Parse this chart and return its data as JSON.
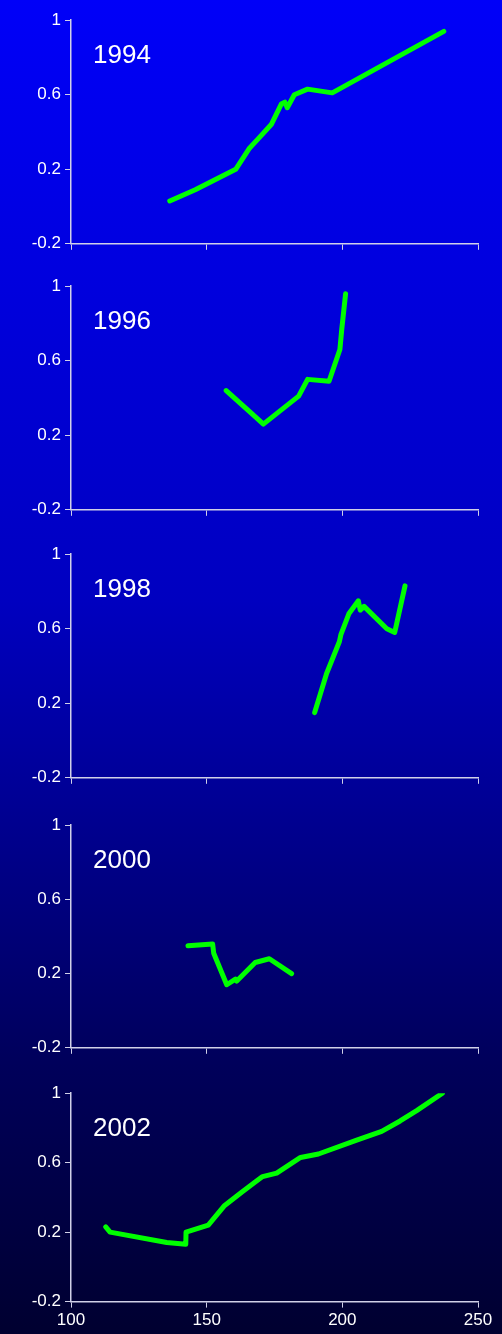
{
  "chart_data": [
    {
      "type": "line",
      "title": "1994",
      "tick_labels": "y",
      "marker": "none",
      "line_style": "solid",
      "xlim": [
        100,
        250
      ],
      "xticks": [
        100,
        150,
        200,
        250
      ],
      "ylim": [
        -0.2,
        1.0
      ],
      "yticks": [
        -0.2,
        0.2,
        0.6,
        1.0
      ],
      "series": [
        {
          "color": "#00ff00",
          "x": [
            136.4,
            145.8,
            160.7,
            165.6,
            173.8,
            177.5,
            178.8,
            179.7,
            182.3,
            187.2,
            196.3,
            237.4
          ],
          "values": [
            0.03,
            0.09,
            0.2,
            0.31,
            0.44,
            0.55,
            0.56,
            0.53,
            0.6,
            0.63,
            0.61,
            0.94
          ]
        }
      ]
    },
    {
      "type": "line",
      "title": "1996",
      "tick_labels": "y",
      "marker": "none",
      "line_style": "solid",
      "xlim": [
        100,
        250
      ],
      "xticks": [
        100,
        150,
        200,
        250
      ],
      "ylim": [
        -0.2,
        1.0
      ],
      "yticks": [
        -0.2,
        0.2,
        0.6,
        1.0
      ],
      "series": [
        {
          "color": "#00ff00",
          "x": [
            157.2,
            170.9,
            183.9,
            187.2,
            195.1,
            199.1,
            199.8,
            201.2
          ],
          "values": [
            0.44,
            0.26,
            0.41,
            0.5,
            0.49,
            0.66,
            0.77,
            0.96
          ]
        }
      ]
    },
    {
      "type": "line",
      "title": "1998",
      "tick_labels": "y",
      "marker": "none",
      "line_style": "solid",
      "xlim": [
        100,
        250
      ],
      "xticks": [
        100,
        150,
        200,
        250
      ],
      "ylim": [
        -0.2,
        1.0
      ],
      "yticks": [
        -0.2,
        0.2,
        0.6,
        1.0
      ],
      "series": [
        {
          "color": "#00ff00",
          "x": [
            189.8,
            194.2,
            198.9,
            199.5,
            202.4,
            205.9,
            206.6,
            208.0,
            216.4,
            219.3,
            223.1
          ],
          "values": [
            0.15,
            0.36,
            0.53,
            0.57,
            0.68,
            0.75,
            0.7,
            0.72,
            0.6,
            0.58,
            0.83
          ]
        }
      ]
    },
    {
      "type": "line",
      "title": "2000",
      "tick_labels": "y",
      "marker": "none",
      "line_style": "solid",
      "xlim": [
        100,
        250
      ],
      "xticks": [
        100,
        150,
        200,
        250
      ],
      "ylim": [
        -0.2,
        1.0
      ],
      "yticks": [
        -0.2,
        0.2,
        0.6,
        1.0
      ],
      "series": [
        {
          "color": "#00ff00",
          "x": [
            143.1,
            152.2,
            152.6,
            157.4,
            160.6,
            161.1,
            167.9,
            173.1,
            181.3
          ],
          "values": [
            0.35,
            0.36,
            0.31,
            0.14,
            0.17,
            0.16,
            0.26,
            0.28,
            0.2
          ]
        }
      ]
    },
    {
      "type": "line",
      "title": "2002",
      "marker": "none",
      "line_style": "solid",
      "xlim": [
        100,
        250
      ],
      "xticks": [
        100,
        150,
        200,
        250
      ],
      "ylim": [
        -0.2,
        1.0
      ],
      "yticks": [
        -0.2,
        0.2,
        0.6,
        1.0
      ],
      "series": [
        {
          "color": "#00ff00",
          "x": [
            112.8,
            114.4,
            135.3,
            142.3,
            142.4,
            150.6,
            156.4,
            162.9,
            170.6,
            175.8,
            184.6,
            191.2,
            205.3,
            214.5,
            221.3,
            227.4,
            236.9
          ],
          "values": [
            0.23,
            0.2,
            0.14,
            0.13,
            0.2,
            0.24,
            0.35,
            0.43,
            0.52,
            0.54,
            0.63,
            0.65,
            0.73,
            0.78,
            0.84,
            0.9,
            1.0
          ]
        }
      ]
    }
  ]
}
